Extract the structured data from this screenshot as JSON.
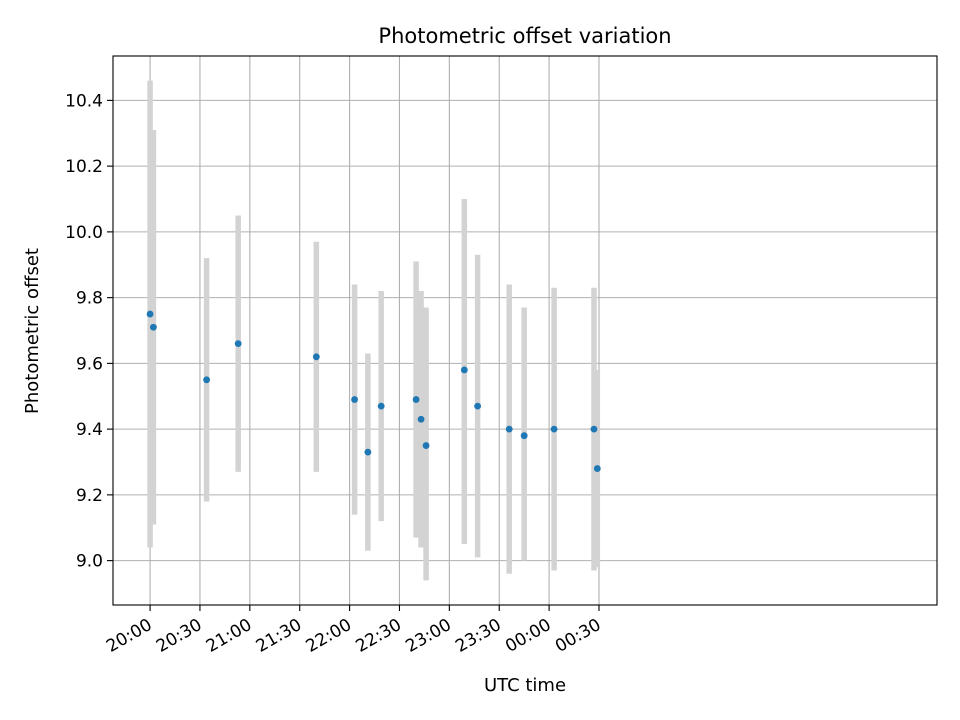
{
  "chart_data": {
    "type": "scatter",
    "title": "Photometric offset variation",
    "xlabel": "UTC time",
    "ylabel": "Photometric offset",
    "x_unit": "minutes after 20:00 UTC (shown as HH:MM ticks)",
    "xlim": [
      -22.3,
      473.3
    ],
    "ylim": [
      8.865,
      10.535
    ],
    "x_ticks": [
      {
        "value": 0,
        "label": "20:00"
      },
      {
        "value": 30,
        "label": "20:30"
      },
      {
        "value": 60,
        "label": "21:00"
      },
      {
        "value": 90,
        "label": "21:30"
      },
      {
        "value": 120,
        "label": "22:00"
      },
      {
        "value": 150,
        "label": "22:30"
      },
      {
        "value": 180,
        "label": "23:00"
      },
      {
        "value": 210,
        "label": "23:30"
      },
      {
        "value": 240,
        "label": "00:00"
      },
      {
        "value": 270,
        "label": "00:30"
      }
    ],
    "y_ticks": [
      {
        "value": 9.0,
        "label": "9.0"
      },
      {
        "value": 9.2,
        "label": "9.2"
      },
      {
        "value": 9.4,
        "label": "9.4"
      },
      {
        "value": 9.6,
        "label": "9.6"
      },
      {
        "value": 9.8,
        "label": "9.8"
      },
      {
        "value": 10.0,
        "label": "10.0"
      },
      {
        "value": 10.2,
        "label": "10.2"
      },
      {
        "value": 10.4,
        "label": "10.4"
      }
    ],
    "grid": true,
    "colors": {
      "points": "#1f77b4",
      "error_bars": "#d3d3d3",
      "grid": "#b0b0b0",
      "axes": "#000000"
    },
    "series": [
      {
        "points": [
          {
            "x": "20:00",
            "y": 9.75,
            "ylow": 9.04,
            "yhigh": 10.46
          },
          {
            "x": "20:02",
            "y": 9.71,
            "ylow": 9.11,
            "yhigh": 10.31
          },
          {
            "x": "20:34",
            "y": 9.55,
            "ylow": 9.18,
            "yhigh": 9.92
          },
          {
            "x": "20:53",
            "y": 9.66,
            "ylow": 9.27,
            "yhigh": 10.05
          },
          {
            "x": "21:40",
            "y": 9.62,
            "ylow": 9.27,
            "yhigh": 9.97
          },
          {
            "x": "22:03",
            "y": 9.49,
            "ylow": 9.14,
            "yhigh": 9.84
          },
          {
            "x": "22:11",
            "y": 9.33,
            "ylow": 9.03,
            "yhigh": 9.63
          },
          {
            "x": "22:19",
            "y": 9.47,
            "ylow": 9.12,
            "yhigh": 9.82
          },
          {
            "x": "22:40",
            "y": 9.49,
            "ylow": 9.07,
            "yhigh": 9.91
          },
          {
            "x": "22:43",
            "y": 9.43,
            "ylow": 9.04,
            "yhigh": 9.82
          },
          {
            "x": "22:46",
            "y": 9.35,
            "ylow": 8.94,
            "yhigh": 9.77
          },
          {
            "x": "23:09",
            "y": 9.58,
            "ylow": 9.05,
            "yhigh": 10.1
          },
          {
            "x": "23:17",
            "y": 9.47,
            "ylow": 9.01,
            "yhigh": 9.93
          },
          {
            "x": "23:36",
            "y": 9.4,
            "ylow": 8.96,
            "yhigh": 9.84
          },
          {
            "x": "23:45",
            "y": 9.38,
            "ylow": 9.0,
            "yhigh": 9.77
          },
          {
            "x": "00:03",
            "y": 9.4,
            "ylow": 8.97,
            "yhigh": 9.83
          },
          {
            "x": "00:27",
            "y": 9.4,
            "ylow": 8.97,
            "yhigh": 9.83
          },
          {
            "x": "00:29",
            "y": 9.28,
            "ylow": 8.98,
            "yhigh": 9.58
          }
        ]
      }
    ]
  }
}
